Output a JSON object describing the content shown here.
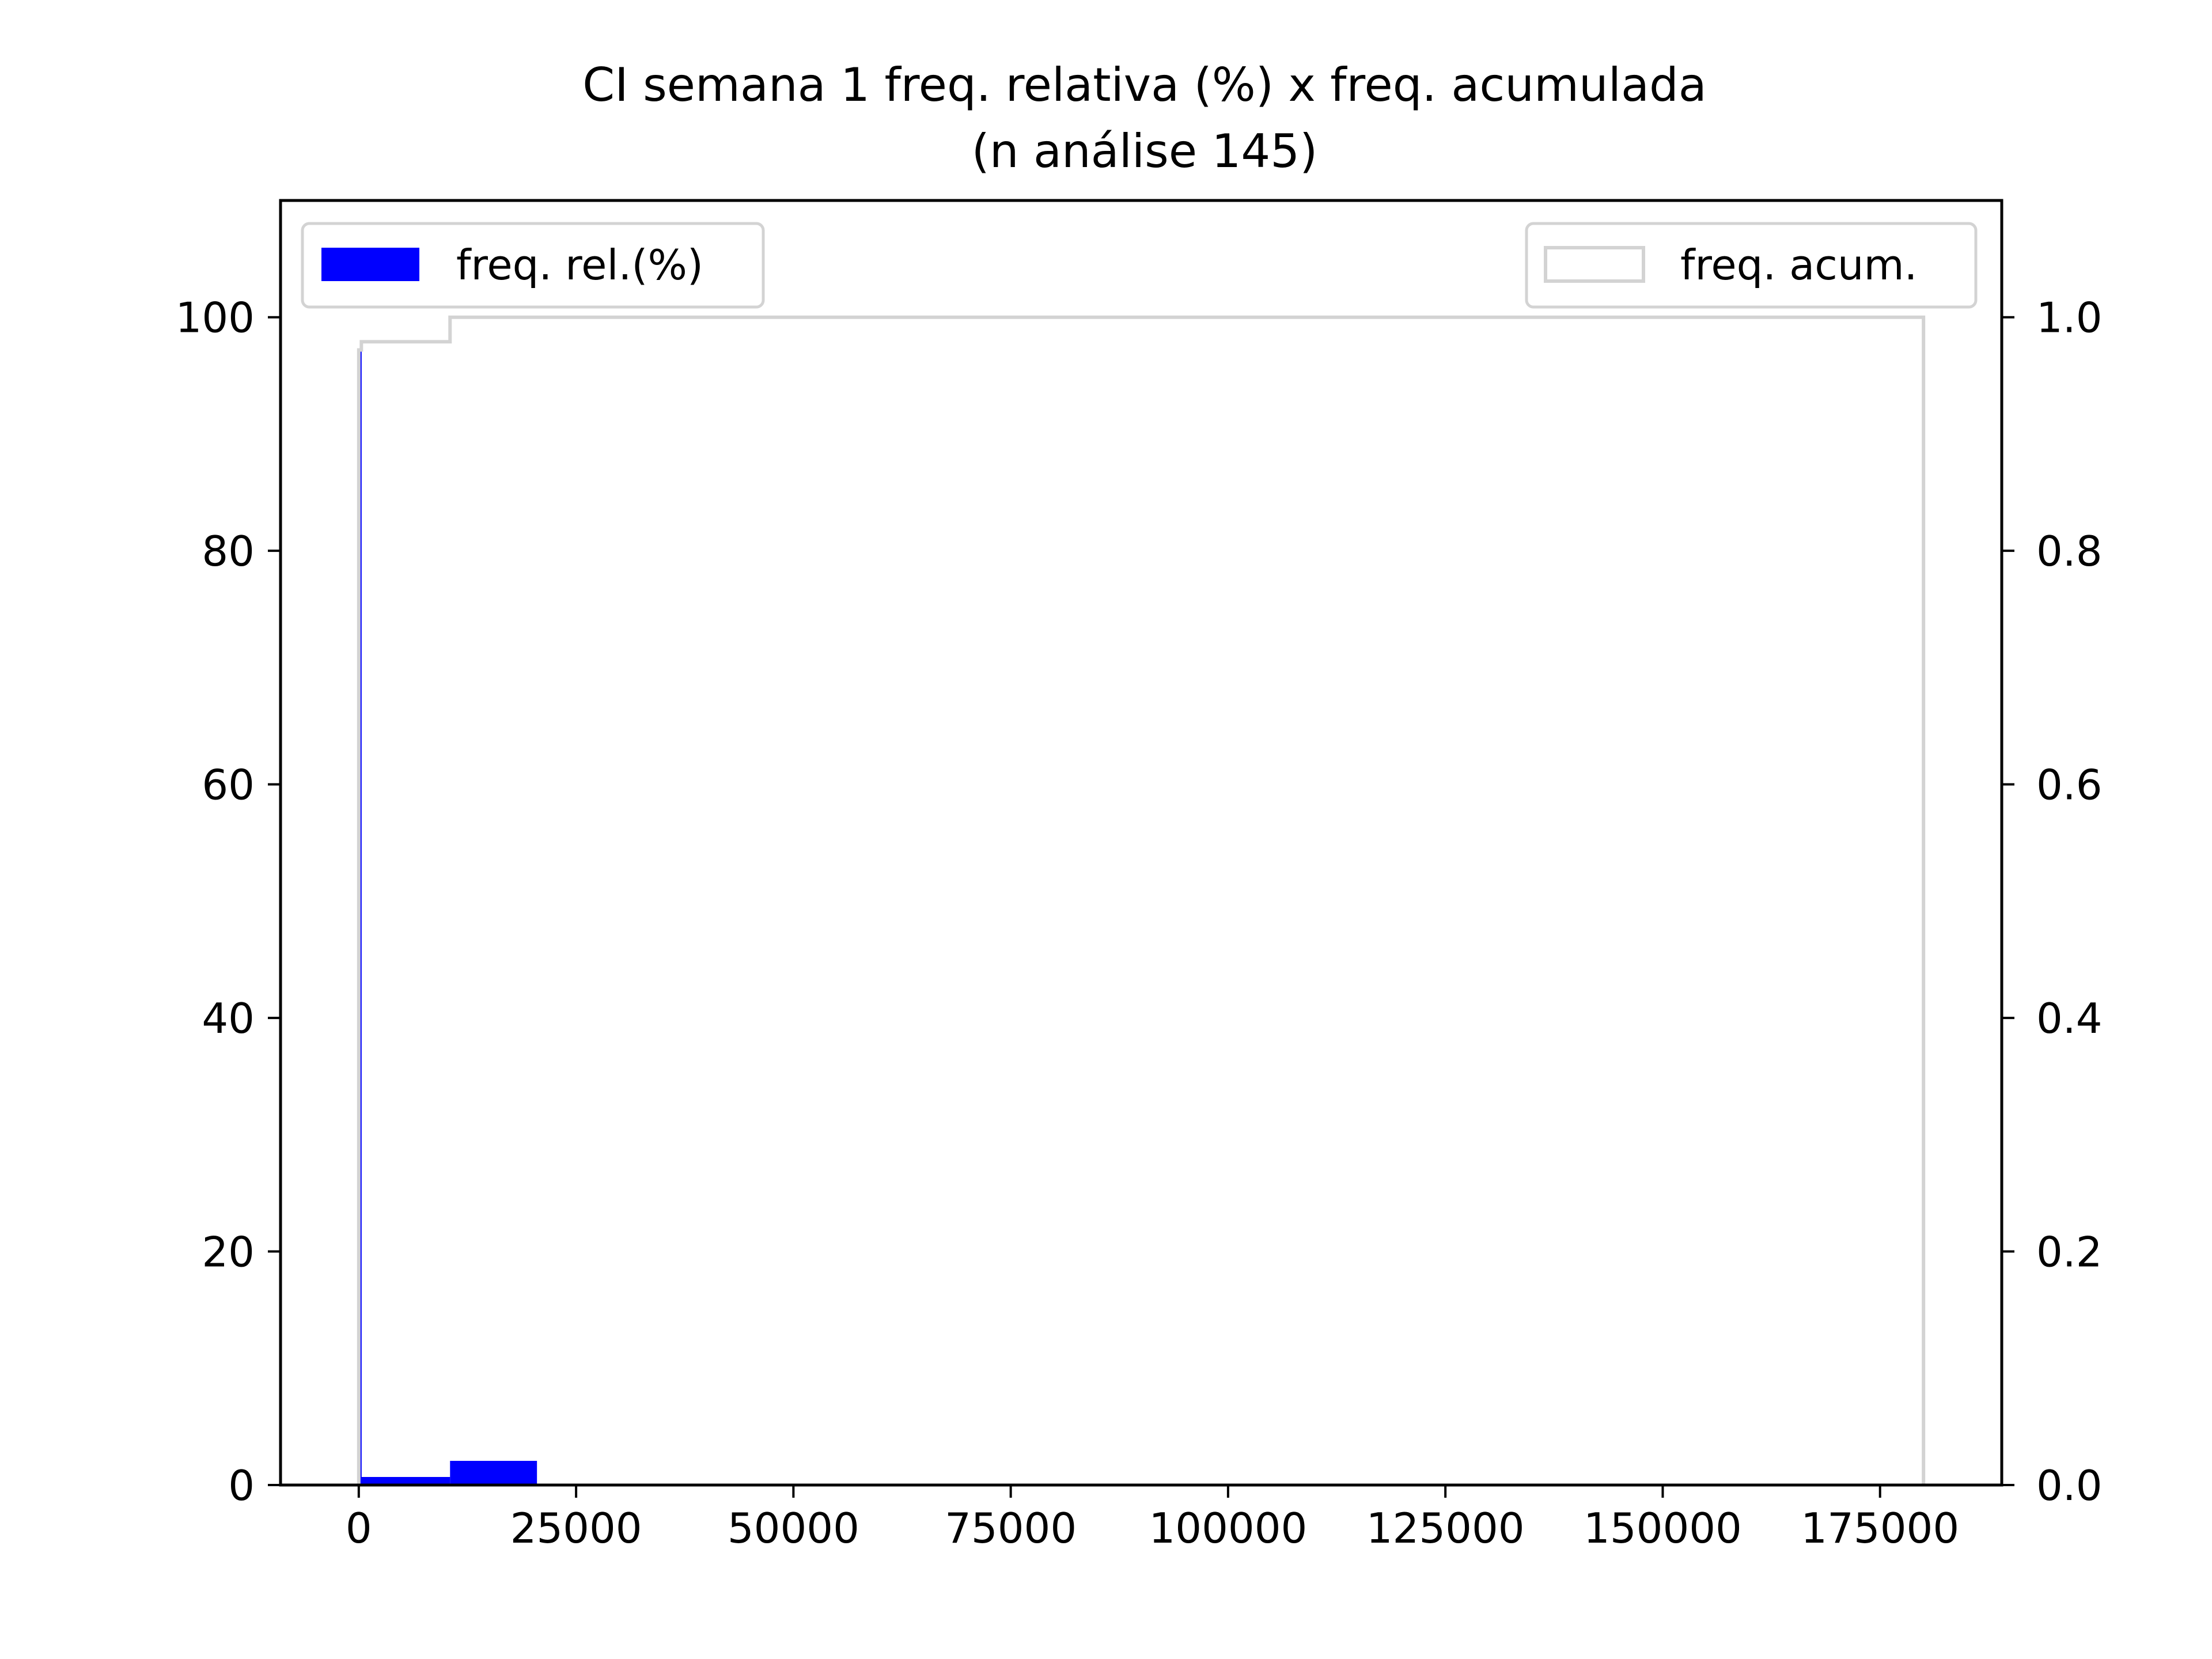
{
  "chart_data": {
    "type": "bar",
    "title_line1": "CI semana 1 freq. relativa (%) x freq. acumulada",
    "title_line2": "(n análise 145)",
    "xlabel": "",
    "ylabel": "",
    "y2label": "",
    "xlim": [
      -9000,
      189000
    ],
    "ylim": [
      0,
      110
    ],
    "y2lim": [
      0,
      1.1
    ],
    "x_ticks": [
      0,
      25000,
      50000,
      75000,
      100000,
      125000,
      150000,
      175000
    ],
    "x_tick_labels": [
      "0",
      "25000",
      "50000",
      "75000",
      "100000",
      "125000",
      "150000",
      "175000"
    ],
    "y_ticks": [
      0,
      20,
      40,
      60,
      80,
      100
    ],
    "y_tick_labels": [
      "0",
      "20",
      "40",
      "60",
      "80",
      "100"
    ],
    "y2_ticks": [
      0,
      0.2,
      0.4,
      0.6,
      0.8,
      1.0
    ],
    "y2_tick_labels": [
      "0.0",
      "0.2",
      "0.4",
      "0.6",
      "0.8",
      "1.0"
    ],
    "grid": false,
    "series": [
      {
        "name": "freq. rel.(%)",
        "kind": "histogram",
        "axis": "left",
        "color": "#0000ff",
        "bins": [
          {
            "x0": 0,
            "x1": 300,
            "value": 97.2
          },
          {
            "x0": 300,
            "x1": 10500,
            "value": 0.69
          },
          {
            "x0": 10500,
            "x1": 20500,
            "value": 2.07
          }
        ]
      },
      {
        "name": "freq. acum.",
        "kind": "step",
        "axis": "right",
        "color": "#d3d3d3",
        "x_start": 0,
        "x_end": 180000,
        "steps": [
          {
            "x0": 0,
            "x1": 300,
            "value": 0.972
          },
          {
            "x0": 300,
            "x1": 10500,
            "value": 0.979
          },
          {
            "x0": 10500,
            "x1": 180000,
            "value": 1.0
          }
        ]
      }
    ],
    "legends": [
      {
        "series": 0,
        "placement": "top-left"
      },
      {
        "series": 1,
        "placement": "top-right"
      }
    ]
  }
}
